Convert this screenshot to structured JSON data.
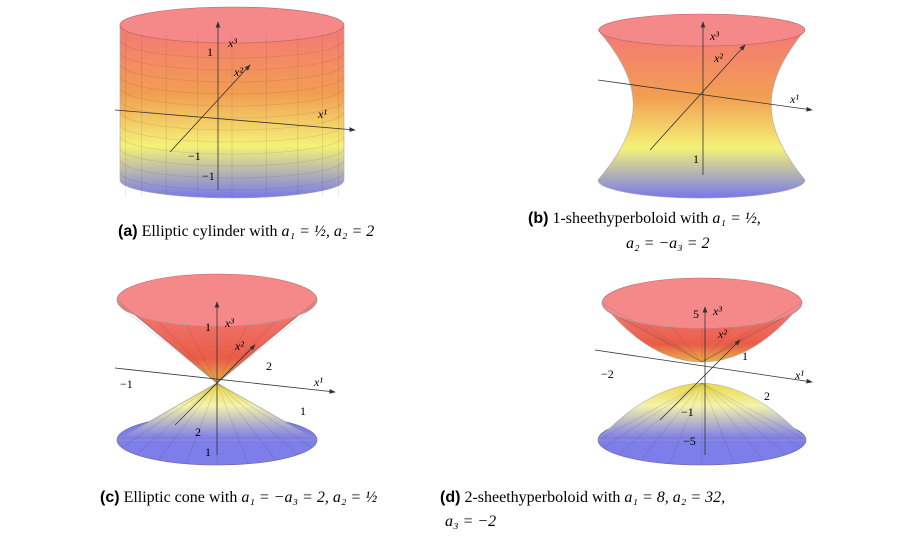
{
  "panels": [
    {
      "label": "(a)",
      "caption": "Elliptic cylinder with",
      "math": "a₁ = ½, a₂ = 2",
      "axes": [
        "x¹",
        "x²",
        "x³"
      ],
      "ticks": [
        "1",
        "−1",
        "−1"
      ]
    },
    {
      "label": "(b)",
      "caption": "1-sheethyperboloid  with",
      "math": "a₁ = ½,",
      "math2": "a₂ = −a₃ = 2",
      "axes": [
        "x¹",
        "x²",
        "x³"
      ],
      "ticks": [
        "1"
      ]
    },
    {
      "label": "(c)",
      "caption": "Elliptic cone with",
      "math": "a₁ = −a₃ = 2, a₂ = ½",
      "axes": [
        "x¹",
        "x²",
        "x³"
      ],
      "ticks": [
        "1",
        "2",
        "−1",
        "1",
        "2",
        "1"
      ]
    },
    {
      "label": "(d)",
      "caption": "2-sheethyperboloid  with",
      "math": "a₁ = 8, a₂ = 32,",
      "math2": "a₃ = −2",
      "axes": [
        "x¹",
        "x²",
        "x³"
      ],
      "ticks": [
        "5",
        "1",
        "−2",
        "2",
        "−1",
        "−5"
      ]
    }
  ]
}
